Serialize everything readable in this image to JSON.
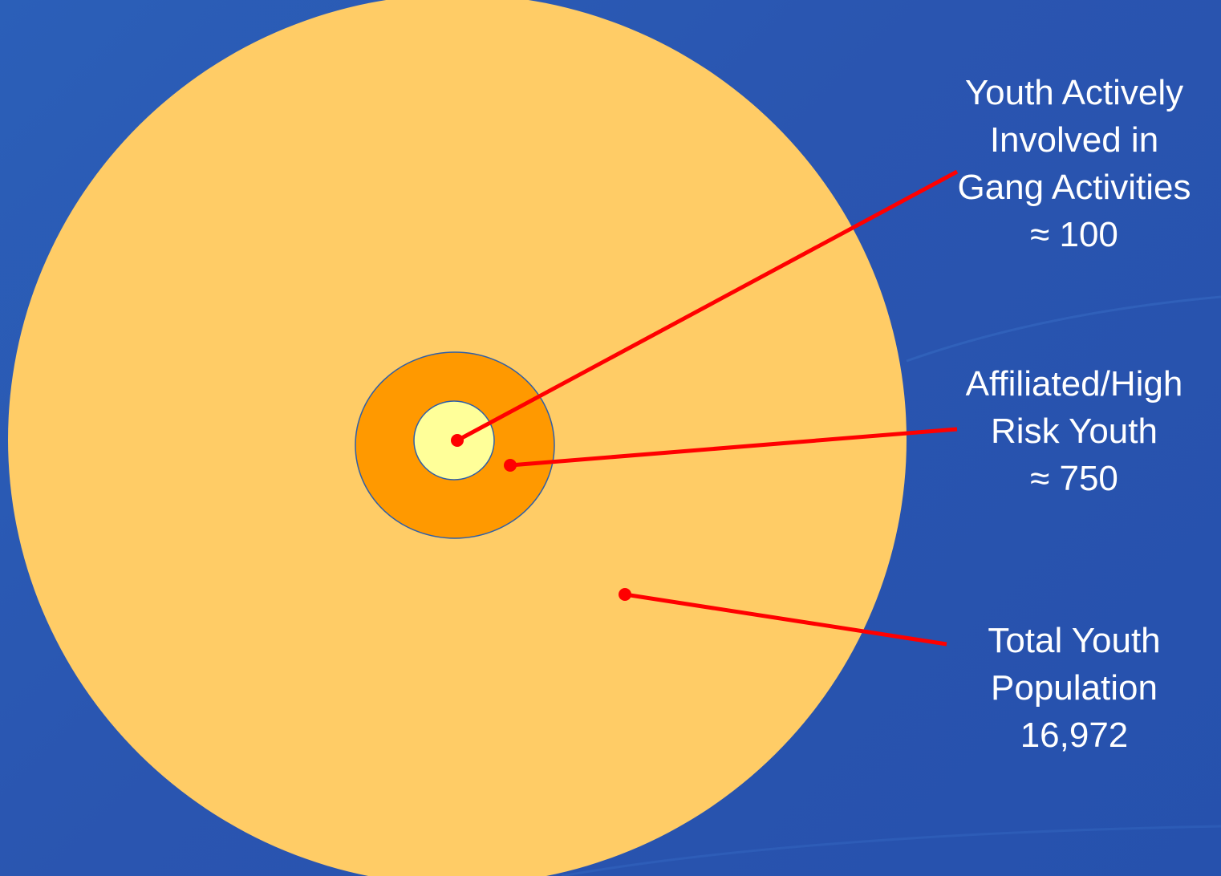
{
  "colors": {
    "background": "#2a57b2",
    "total_ring": "#ffcc66",
    "risk_ring": "#ff9900",
    "active_ring": "#ffff99",
    "ring_stroke": "#2e5fa8",
    "leader_line": "#ff0000",
    "label_text": "#ffffff"
  },
  "groups": [
    {
      "id": "active",
      "lines": [
        "Youth Actively",
        "Involved in",
        "Gang Activities",
        "≈ 100"
      ],
      "value": 100
    },
    {
      "id": "risk",
      "lines": [
        "Affiliated/High",
        "Risk Youth",
        "≈ 750"
      ],
      "value": 750
    },
    {
      "id": "total",
      "lines": [
        "Total Youth",
        "Population",
        "16,972"
      ],
      "value": 16972
    }
  ]
}
